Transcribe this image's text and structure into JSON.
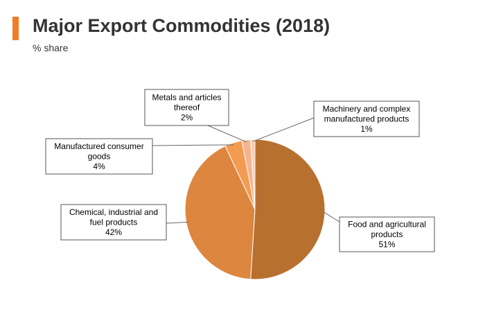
{
  "header": {
    "title": "Major Export Commodities (2018)",
    "subtitle": "% share",
    "accent_color": "#ef7d28"
  },
  "chart_data": {
    "type": "pie",
    "title": "Major Export Commodities (2018)",
    "subtitle": "% share",
    "slices": [
      {
        "name": "Food and agricultural products",
        "value": 51,
        "color": "#b8702f",
        "label_lines": [
          "Food and agricultural",
          "products",
          "51%"
        ]
      },
      {
        "name": "Chemical, industrial and fuel products",
        "value": 42,
        "color": "#dd8640",
        "label_lines": [
          "Chemical, industrial and",
          "fuel products",
          "42%"
        ]
      },
      {
        "name": "Manufactured consumer goods",
        "value": 4,
        "color": "#f49b52",
        "label_lines": [
          "Manufactured consumer",
          "goods",
          "4%"
        ]
      },
      {
        "name": "Metals and articles thereof",
        "value": 2,
        "color": "#f6b48c",
        "label_lines": [
          "Metals and articles",
          "thereof",
          "2%"
        ]
      },
      {
        "name": "Machinery and complex manufactured products",
        "value": 1,
        "color": "#f8cdb4",
        "label_lines": [
          "Machinery and complex",
          "manufactured products",
          "1%"
        ]
      }
    ]
  }
}
